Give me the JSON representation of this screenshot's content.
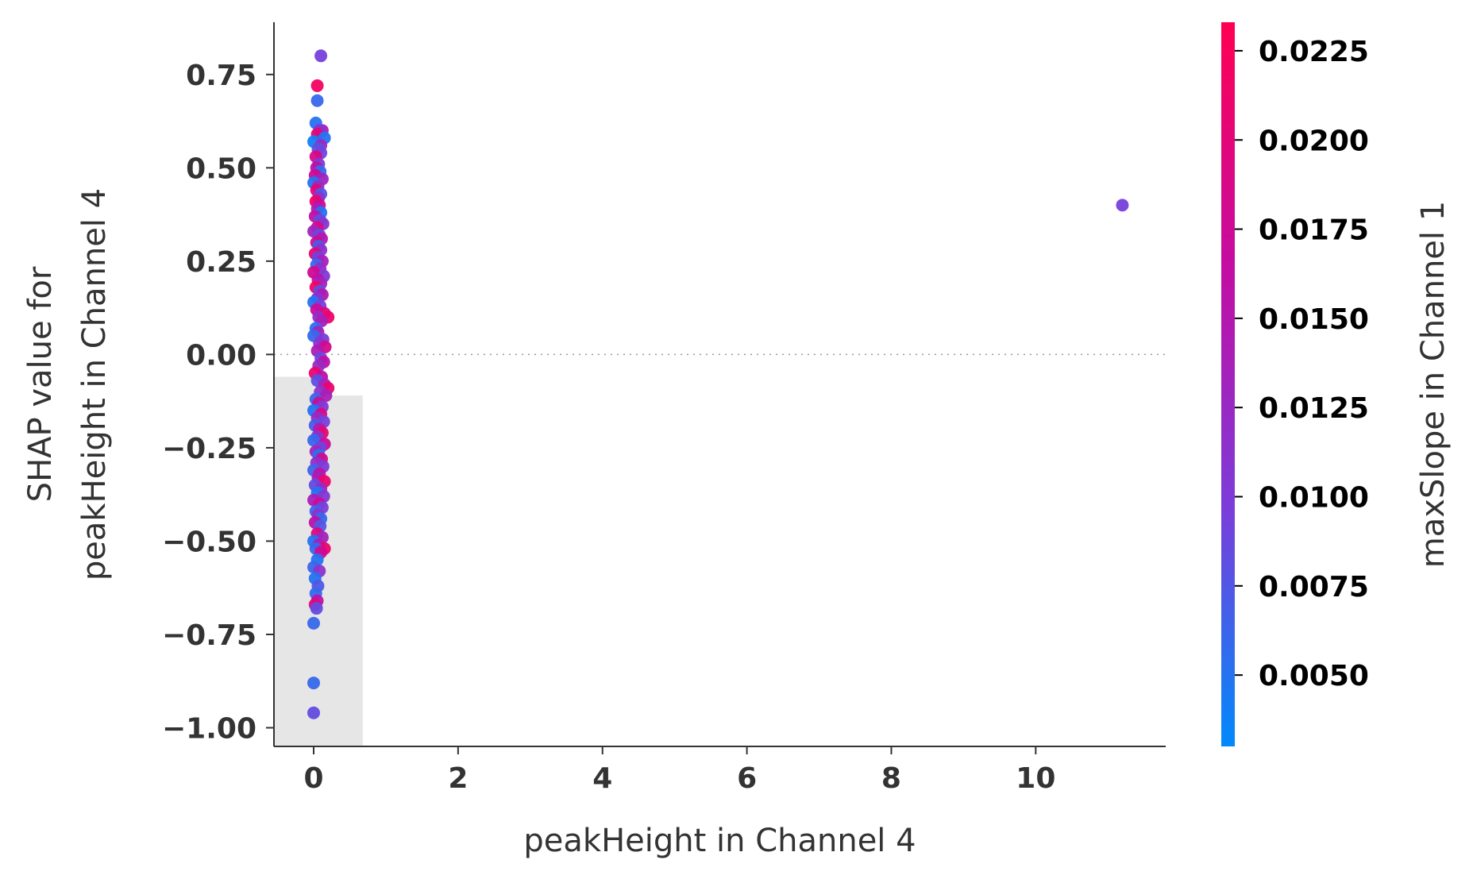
{
  "chart_data": {
    "type": "scatter",
    "title": "",
    "xlabel": "peakHeight in Channel 4",
    "ylabel_lines": [
      "SHAP value for",
      "peakHeight in Channel 4"
    ],
    "xlim": [
      -0.55,
      11.8
    ],
    "ylim": [
      -1.05,
      0.89
    ],
    "xticks": [
      {
        "value": 0,
        "label": "0"
      },
      {
        "value": 2,
        "label": "2"
      },
      {
        "value": 4,
        "label": "4"
      },
      {
        "value": 6,
        "label": "6"
      },
      {
        "value": 8,
        "label": "8"
      },
      {
        "value": 10,
        "label": "10"
      }
    ],
    "yticks": [
      {
        "value": 0.75,
        "label": "0.75"
      },
      {
        "value": 0.5,
        "label": "0.50"
      },
      {
        "value": 0.25,
        "label": "0.25"
      },
      {
        "value": 0.0,
        "label": "0.00"
      },
      {
        "value": -0.25,
        "label": "−0.25"
      },
      {
        "value": -0.5,
        "label": "−0.50"
      },
      {
        "value": -0.75,
        "label": "−0.75"
      },
      {
        "value": -1.0,
        "label": "−1.00"
      }
    ],
    "zero_line": 0.0,
    "histogram_bars": [
      {
        "x0": -0.55,
        "x1": 0.0,
        "top": -0.06
      },
      {
        "x0": 0.0,
        "x1": 0.68,
        "top": -0.11
      }
    ],
    "colorbar": {
      "label": "maxSlope in Channel 1",
      "range": [
        0.003,
        0.0233
      ],
      "ticks": [
        {
          "value": 0.005,
          "label": "0.0050"
        },
        {
          "value": 0.0075,
          "label": "0.0075"
        },
        {
          "value": 0.01,
          "label": "0.0100"
        },
        {
          "value": 0.0125,
          "label": "0.0125"
        },
        {
          "value": 0.015,
          "label": "0.0150"
        },
        {
          "value": 0.0175,
          "label": "0.0175"
        },
        {
          "value": 0.02,
          "label": "0.0200"
        },
        {
          "value": 0.0225,
          "label": "0.0225"
        }
      ],
      "colors": [
        "#008afb",
        "#7b3dda",
        "#c30da3",
        "#ff0052"
      ]
    },
    "points": [
      [
        0.1,
        0.8,
        0.0095
      ],
      [
        0.05,
        0.72,
        0.022
      ],
      [
        0.05,
        0.68,
        0.006
      ],
      [
        0.03,
        0.62,
        0.005
      ],
      [
        0.12,
        0.6,
        0.014
      ],
      [
        0.08,
        0.6,
        0.011
      ],
      [
        0.05,
        0.59,
        0.02
      ],
      [
        0.15,
        0.58,
        0.005
      ],
      [
        0.0,
        0.57,
        0.004
      ],
      [
        0.1,
        0.56,
        0.0125
      ],
      [
        0.06,
        0.55,
        0.008
      ],
      [
        0.1,
        0.54,
        0.009
      ],
      [
        0.03,
        0.53,
        0.019
      ],
      [
        0.07,
        0.51,
        0.0105
      ],
      [
        0.04,
        0.5,
        0.016
      ],
      [
        0.09,
        0.49,
        0.006
      ],
      [
        0.02,
        0.48,
        0.0175
      ],
      [
        0.12,
        0.47,
        0.013
      ],
      [
        0.0,
        0.46,
        0.005
      ],
      [
        0.06,
        0.45,
        0.012
      ],
      [
        0.04,
        0.44,
        0.02
      ],
      [
        0.1,
        0.43,
        0.0075
      ],
      [
        0.07,
        0.42,
        0.011
      ],
      [
        0.03,
        0.41,
        0.0215
      ],
      [
        0.08,
        0.4,
        0.018
      ],
      [
        0.05,
        0.39,
        0.014
      ],
      [
        0.1,
        0.38,
        0.005
      ],
      [
        0.02,
        0.37,
        0.016
      ],
      [
        0.09,
        0.36,
        0.0085
      ],
      [
        0.13,
        0.35,
        0.011
      ],
      [
        0.05,
        0.34,
        0.019
      ],
      [
        0.0,
        0.33,
        0.013
      ],
      [
        0.08,
        0.32,
        0.009
      ],
      [
        0.11,
        0.31,
        0.015
      ],
      [
        0.04,
        0.3,
        0.0175
      ],
      [
        0.07,
        0.29,
        0.007
      ],
      [
        0.1,
        0.28,
        0.0115
      ],
      [
        0.02,
        0.27,
        0.0205
      ],
      [
        0.06,
        0.26,
        0.0095
      ],
      [
        0.12,
        0.25,
        0.014
      ],
      [
        0.04,
        0.24,
        0.006
      ],
      [
        0.09,
        0.23,
        0.012
      ],
      [
        0.0,
        0.22,
        0.018
      ],
      [
        0.14,
        0.21,
        0.0105
      ],
      [
        0.06,
        0.2,
        0.016
      ],
      [
        0.1,
        0.19,
        0.0135
      ],
      [
        0.03,
        0.18,
        0.022
      ],
      [
        0.08,
        0.17,
        0.0085
      ],
      [
        0.12,
        0.16,
        0.015
      ],
      [
        0.05,
        0.15,
        0.011
      ],
      [
        0.0,
        0.14,
        0.005
      ],
      [
        0.09,
        0.13,
        0.0095
      ],
      [
        0.04,
        0.12,
        0.017
      ],
      [
        0.15,
        0.11,
        0.0195
      ],
      [
        0.07,
        0.1,
        0.012
      ],
      [
        0.2,
        0.1,
        0.021
      ],
      [
        0.11,
        0.09,
        0.014
      ],
      [
        0.03,
        0.07,
        0.005
      ],
      [
        0.06,
        0.06,
        0.0135
      ],
      [
        0.0,
        0.05,
        0.006
      ],
      [
        0.13,
        0.04,
        0.01
      ],
      [
        0.08,
        0.03,
        0.011
      ],
      [
        0.16,
        0.02,
        0.0185
      ],
      [
        0.05,
        0.01,
        0.0145
      ],
      [
        0.1,
        -0.01,
        0.009
      ],
      [
        0.14,
        -0.02,
        0.016
      ],
      [
        0.07,
        -0.03,
        0.0125
      ],
      [
        0.02,
        -0.05,
        0.021
      ],
      [
        0.11,
        -0.06,
        0.0165
      ],
      [
        0.05,
        -0.07,
        0.008
      ],
      [
        0.15,
        -0.08,
        0.0135
      ],
      [
        0.2,
        -0.09,
        0.021
      ],
      [
        0.09,
        -0.1,
        0.0115
      ],
      [
        0.17,
        -0.11,
        0.014
      ],
      [
        0.03,
        -0.12,
        0.006
      ],
      [
        0.07,
        -0.13,
        0.0175
      ],
      [
        0.12,
        -0.14,
        0.0105
      ],
      [
        0.0,
        -0.15,
        0.005
      ],
      [
        0.1,
        -0.16,
        0.019
      ],
      [
        0.05,
        -0.17,
        0.0125
      ],
      [
        0.14,
        -0.18,
        0.0095
      ],
      [
        0.02,
        -0.19,
        0.007
      ],
      [
        0.08,
        -0.2,
        0.015
      ],
      [
        0.12,
        -0.21,
        0.0205
      ],
      [
        0.05,
        -0.22,
        0.011
      ],
      [
        0.0,
        -0.23,
        0.006
      ],
      [
        0.15,
        -0.24,
        0.017
      ],
      [
        0.09,
        -0.25,
        0.009
      ],
      [
        0.03,
        -0.26,
        0.0135
      ],
      [
        0.07,
        -0.27,
        0.005
      ],
      [
        0.11,
        -0.28,
        0.0185
      ],
      [
        0.04,
        -0.29,
        0.012
      ],
      [
        0.13,
        -0.3,
        0.01
      ],
      [
        0.0,
        -0.31,
        0.0065
      ],
      [
        0.08,
        -0.32,
        0.016
      ],
      [
        0.06,
        -0.33,
        0.0145
      ],
      [
        0.15,
        -0.34,
        0.021
      ],
      [
        0.02,
        -0.35,
        0.0085
      ],
      [
        0.1,
        -0.36,
        0.0125
      ],
      [
        0.05,
        -0.37,
        0.005
      ],
      [
        0.14,
        -0.38,
        0.0105
      ],
      [
        0.0,
        -0.39,
        0.014
      ],
      [
        0.08,
        -0.4,
        0.0175
      ],
      [
        0.12,
        -0.41,
        0.0095
      ],
      [
        0.03,
        -0.42,
        0.0065
      ],
      [
        0.06,
        -0.43,
        0.0115
      ],
      [
        0.1,
        -0.44,
        0.006
      ],
      [
        0.02,
        -0.45,
        0.016
      ],
      [
        0.09,
        -0.46,
        0.0075
      ],
      [
        0.05,
        -0.48,
        0.0195
      ],
      [
        0.12,
        -0.49,
        0.0135
      ],
      [
        0.0,
        -0.5,
        0.005
      ],
      [
        0.07,
        -0.51,
        0.0145
      ],
      [
        0.15,
        -0.52,
        0.021
      ],
      [
        0.03,
        -0.52,
        0.006
      ],
      [
        0.1,
        -0.53,
        0.018
      ],
      [
        0.05,
        -0.55,
        0.005
      ],
      [
        0.0,
        -0.57,
        0.006
      ],
      [
        0.08,
        -0.58,
        0.0115
      ],
      [
        0.02,
        -0.6,
        0.005
      ],
      [
        0.06,
        -0.62,
        0.0075
      ],
      [
        0.03,
        -0.64,
        0.006
      ],
      [
        0.05,
        -0.66,
        0.0155
      ],
      [
        0.02,
        -0.67,
        0.02
      ],
      [
        0.04,
        -0.68,
        0.0085
      ],
      [
        0.0,
        -0.72,
        0.006
      ],
      [
        0.0,
        -0.88,
        0.006
      ],
      [
        0.0,
        -0.96,
        0.0085
      ],
      [
        11.2,
        0.4,
        0.0095
      ]
    ]
  }
}
